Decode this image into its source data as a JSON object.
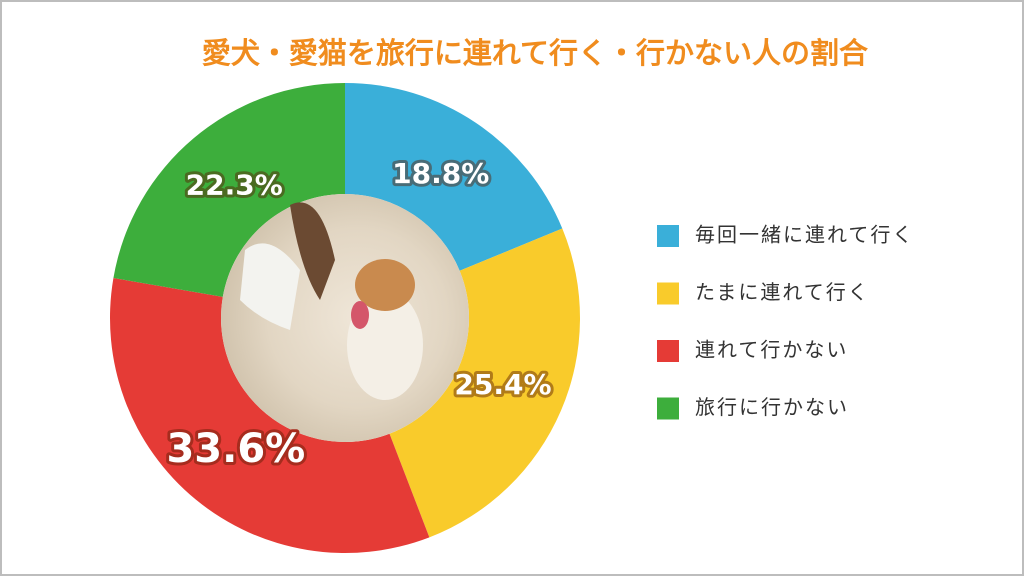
{
  "chart_data": {
    "type": "pie",
    "title": "愛犬・愛猫を旅行に連れて行く・行かない人の割合",
    "categories": [
      "毎回一緒に連れて行く",
      "たまに連れて行く",
      "連れて行かない",
      "旅行に行かない"
    ],
    "values": [
      18.8,
      25.4,
      33.6,
      22.3
    ],
    "value_labels": [
      "18.8%",
      "25.4%",
      "33.6%",
      "22.3%"
    ],
    "colors": [
      "#3aafd9",
      "#f9cb2b",
      "#e53b36",
      "#3dae3c"
    ]
  }
}
